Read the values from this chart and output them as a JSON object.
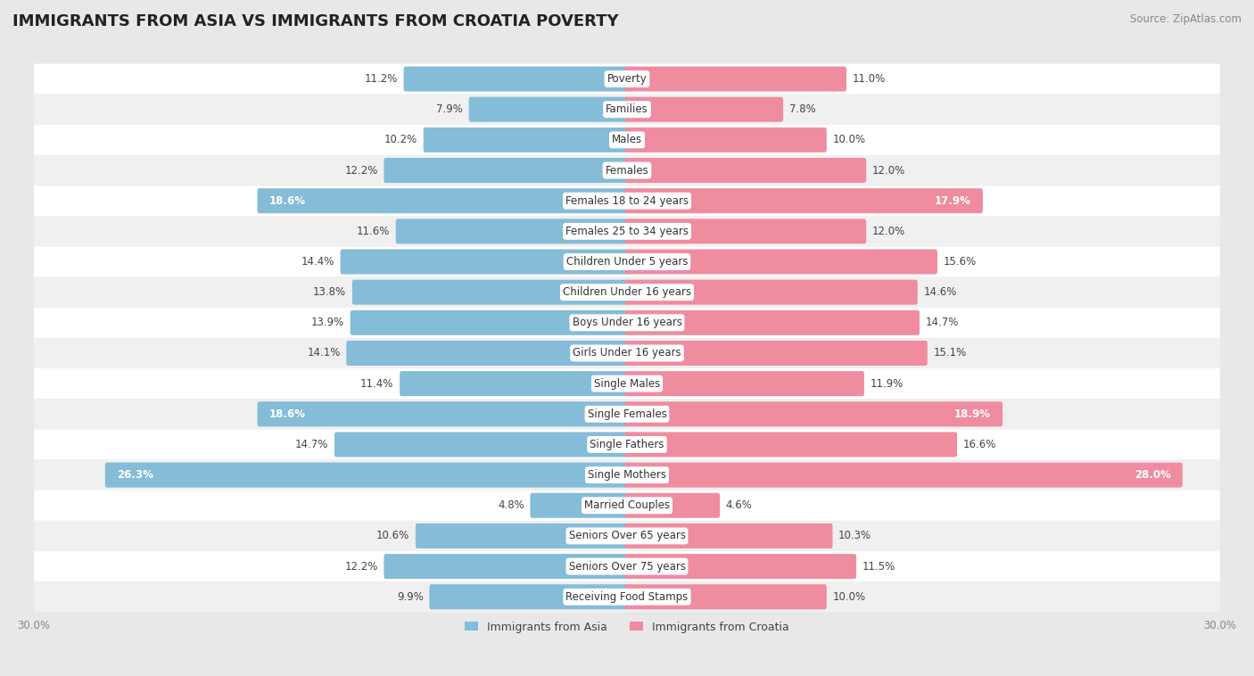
{
  "title": "IMMIGRANTS FROM ASIA VS IMMIGRANTS FROM CROATIA POVERTY",
  "source": "Source: ZipAtlas.com",
  "categories": [
    "Poverty",
    "Families",
    "Males",
    "Females",
    "Females 18 to 24 years",
    "Females 25 to 34 years",
    "Children Under 5 years",
    "Children Under 16 years",
    "Boys Under 16 years",
    "Girls Under 16 years",
    "Single Males",
    "Single Females",
    "Single Fathers",
    "Single Mothers",
    "Married Couples",
    "Seniors Over 65 years",
    "Seniors Over 75 years",
    "Receiving Food Stamps"
  ],
  "asia_values": [
    11.2,
    7.9,
    10.2,
    12.2,
    18.6,
    11.6,
    14.4,
    13.8,
    13.9,
    14.1,
    11.4,
    18.6,
    14.7,
    26.3,
    4.8,
    10.6,
    12.2,
    9.9
  ],
  "croatia_values": [
    11.0,
    7.8,
    10.0,
    12.0,
    17.9,
    12.0,
    15.6,
    14.6,
    14.7,
    15.1,
    11.9,
    18.9,
    16.6,
    28.0,
    4.6,
    10.3,
    11.5,
    10.0
  ],
  "asia_color": "#85bcd8",
  "croatia_color": "#f08ca0",
  "highlight_threshold": 17.0,
  "bar_height": 0.62,
  "max_val": 30.0,
  "title_fontsize": 13,
  "label_fontsize": 8.5,
  "category_fontsize": 8.5,
  "source_fontsize": 8.5,
  "legend_fontsize": 9,
  "axis_label_fontsize": 8.5,
  "row_colors": [
    "#ffffff",
    "#f0f0f0"
  ],
  "fig_bg": "#e8e8e8"
}
